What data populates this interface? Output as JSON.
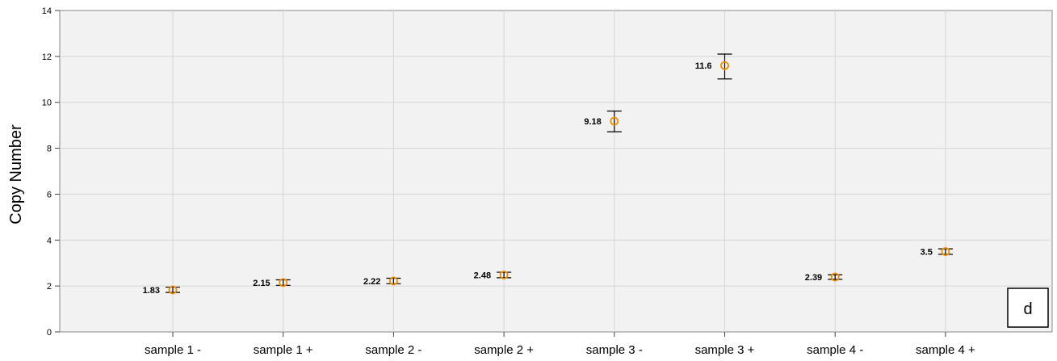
{
  "chart_data": {
    "type": "scatter",
    "title": "",
    "xlabel": "",
    "ylabel": "Copy Number",
    "panel_label": "d",
    "categories": [
      "sample 1 -",
      "sample 1 +",
      "sample 2 -",
      "sample 2 +",
      "sample 3 -",
      "sample 3 +",
      "sample 4 -",
      "sample 4 +"
    ],
    "values": [
      1.83,
      2.15,
      2.22,
      2.48,
      9.18,
      11.6,
      2.39,
      3.5
    ],
    "value_labels": [
      "1.83",
      "2.15",
      "2.22",
      "2.48",
      "9.18",
      "11.6",
      "2.39",
      "3.5"
    ],
    "error_low": [
      1.72,
      2.03,
      2.1,
      2.36,
      8.72,
      11.02,
      2.29,
      3.38
    ],
    "error_high": [
      1.95,
      2.27,
      2.34,
      2.6,
      9.62,
      12.1,
      2.49,
      3.62
    ],
    "ylim": [
      0,
      14
    ],
    "yticks": [
      0,
      2,
      4,
      6,
      8,
      10,
      12,
      14
    ],
    "grid": true,
    "marker_color": "#f08c00",
    "errorbar_color": "#000000",
    "grid_color": "#d6d6d6"
  }
}
